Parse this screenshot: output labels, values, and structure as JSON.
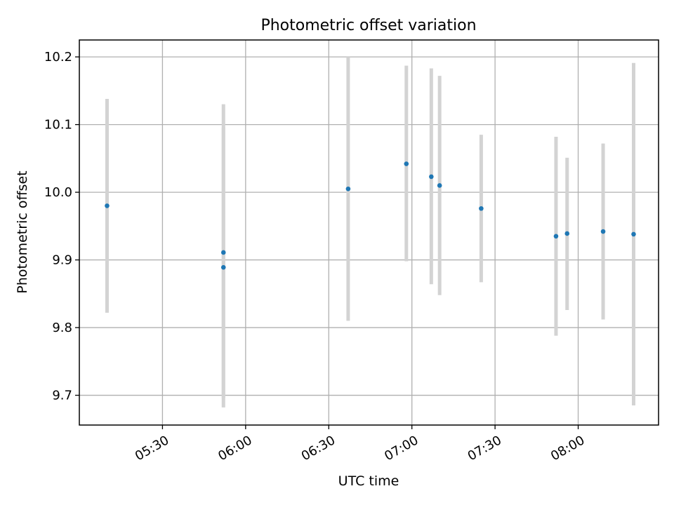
{
  "chart_data": {
    "type": "scatter",
    "title": "Photometric offset variation",
    "xlabel": "UTC time",
    "ylabel": "Photometric offset",
    "grid": true,
    "xlim": [
      "05:00",
      "08:29"
    ],
    "ylim": [
      9.656,
      10.225
    ],
    "x_ticks": [
      "05:30",
      "06:00",
      "06:30",
      "07:00",
      "07:30",
      "08:00"
    ],
    "y_ticks": [
      9.7,
      9.8,
      9.9,
      10.0,
      10.1,
      10.2
    ],
    "y_tick_labels": [
      "9.7",
      "9.8",
      "9.9",
      "10.0",
      "10.1",
      "10.2"
    ],
    "colors": {
      "points": "#1f77b4",
      "errorbars": "#d3d3d3",
      "grid": "#b0b0b0"
    },
    "points": [
      {
        "time": "05:10",
        "y": 9.98,
        "low": 9.822,
        "high": 10.138
      },
      {
        "time": "05:52",
        "y": 9.911,
        "low": 9.696,
        "high": 10.13
      },
      {
        "time": "05:52",
        "y": 9.889,
        "low": 9.682,
        "high": 10.096
      },
      {
        "time": "06:37",
        "y": 10.005,
        "low": 9.81,
        "high": 10.2
      },
      {
        "time": "06:58",
        "y": 10.042,
        "low": 9.898,
        "high": 10.187
      },
      {
        "time": "07:07",
        "y": 10.023,
        "low": 9.864,
        "high": 10.183
      },
      {
        "time": "07:10",
        "y": 10.01,
        "low": 9.848,
        "high": 10.172
      },
      {
        "time": "07:25",
        "y": 9.976,
        "low": 9.867,
        "high": 10.085
      },
      {
        "time": "07:52",
        "y": 9.935,
        "low": 9.788,
        "high": 10.082
      },
      {
        "time": "07:56",
        "y": 9.939,
        "low": 9.826,
        "high": 10.051
      },
      {
        "time": "08:09",
        "y": 9.942,
        "low": 9.812,
        "high": 10.072
      },
      {
        "time": "08:20",
        "y": 9.938,
        "low": 9.685,
        "high": 10.191
      }
    ]
  }
}
